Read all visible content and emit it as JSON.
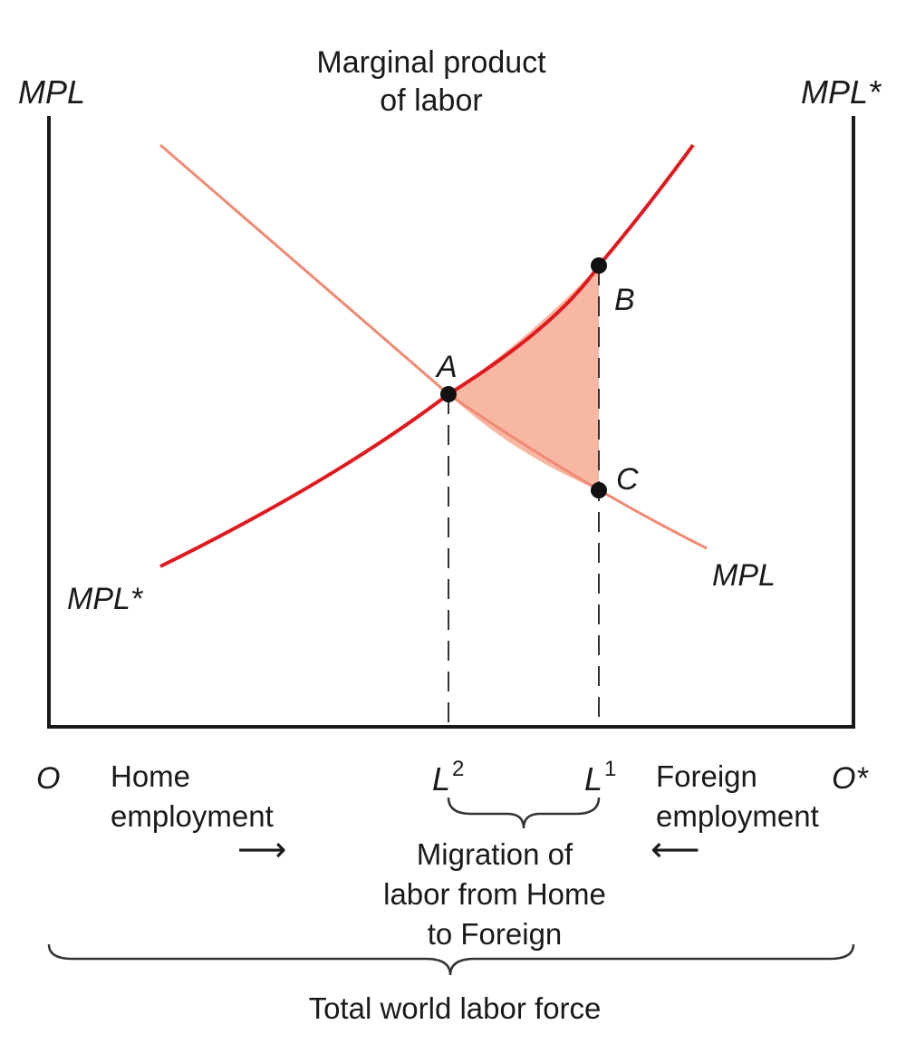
{
  "axes": {
    "left_axis_label": "MPL",
    "right_axis_label": "MPL*",
    "title_line1": "Marginal product",
    "title_line2": "of labor",
    "origin_left": "O",
    "origin_right": "O*"
  },
  "curves": {
    "mpl_home_label": "MPL",
    "mpl_foreign_label": "MPL*",
    "mpl_home_color": "#f08a72",
    "mpl_foreign_color": "#e0191e",
    "deadweight_fill_color": "#f8b7a2"
  },
  "points": {
    "a": "A",
    "b": "B",
    "c": "C"
  },
  "ticks": {
    "l2_base": "L",
    "l2_sup": "2",
    "l1_base": "L",
    "l1_sup": "1"
  },
  "bottom": {
    "home_line1": "Home",
    "home_line2": "employment",
    "home_arrow": "⟶",
    "foreign_line1": "Foreign",
    "foreign_line2": "employment",
    "foreign_arrow": "⟵",
    "migration_line1": "Migration of",
    "migration_line2": "labor from Home",
    "migration_line3": "to Foreign",
    "total": "Total world labor force"
  }
}
